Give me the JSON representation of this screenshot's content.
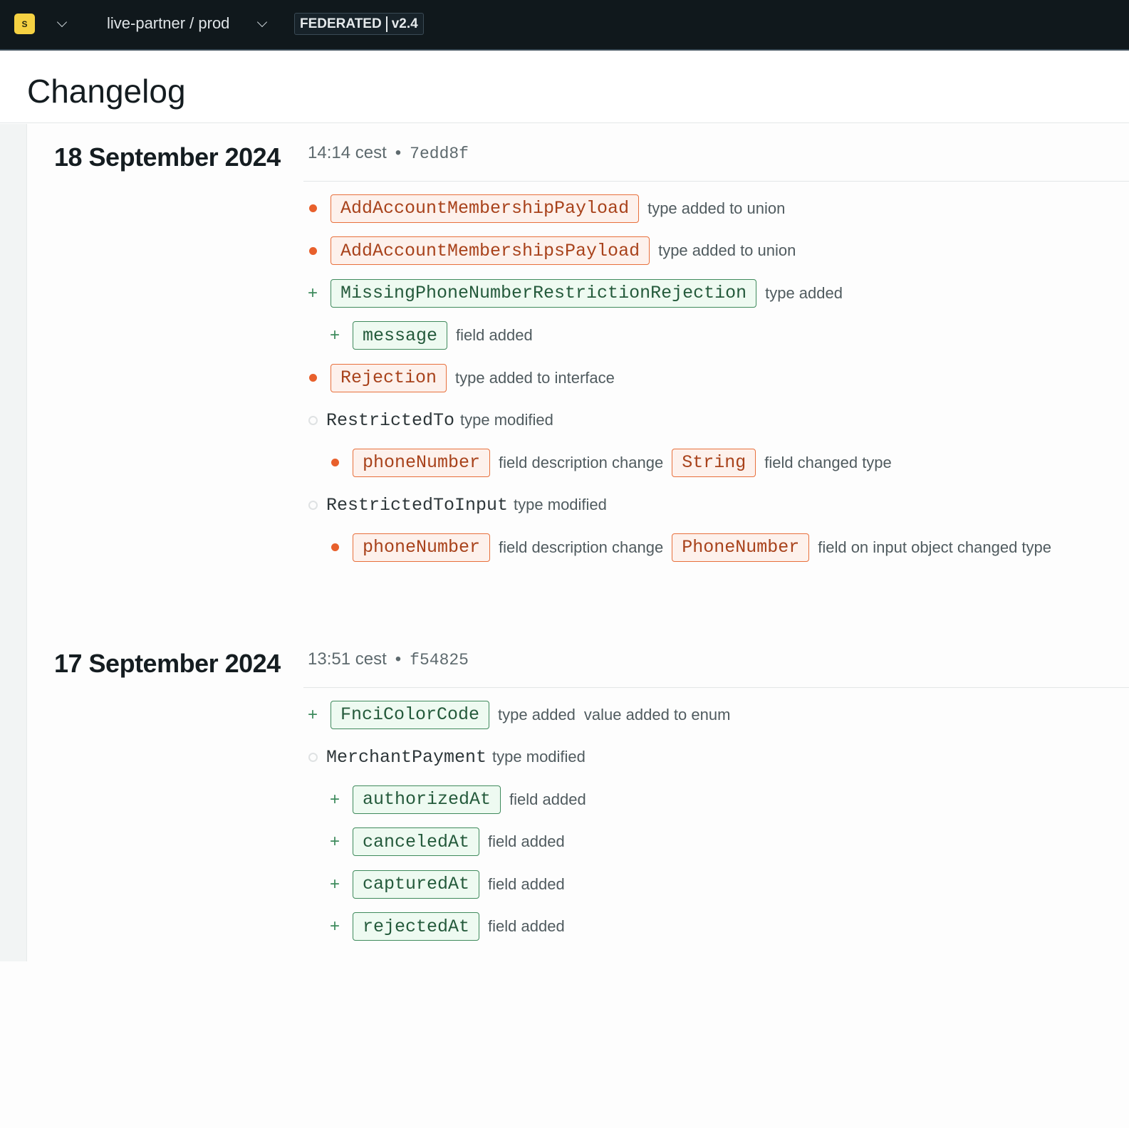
{
  "topbar": {
    "org_initial": "S",
    "graph": "live-partner / prod",
    "badge_mode": "FEDERATED",
    "badge_version": "v2.4"
  },
  "page": {
    "title": "Changelog"
  },
  "colors": {
    "removed": "#e8602c",
    "added": "#3d8a5c",
    "topbar": "#10181c",
    "logo": "#f5d142"
  },
  "entries": [
    {
      "date": "18 September 2024",
      "time": "14:14 cest",
      "hash": "7edd8f",
      "changes": [
        {
          "marker": "removed",
          "indent": 0,
          "parts": [
            {
              "kind": "pill",
              "text": "AddAccountMembershipPayload"
            },
            {
              "kind": "text",
              "text": "type added to union"
            }
          ]
        },
        {
          "marker": "removed",
          "indent": 0,
          "parts": [
            {
              "kind": "pill",
              "text": "AddAccountMembershipsPayload"
            },
            {
              "kind": "text",
              "text": "type added to union"
            }
          ]
        },
        {
          "marker": "added",
          "indent": 0,
          "parts": [
            {
              "kind": "pill",
              "text": "MissingPhoneNumberRestrictionRejection"
            },
            {
              "kind": "text",
              "text": "type added"
            }
          ]
        },
        {
          "marker": "added",
          "indent": 1,
          "parts": [
            {
              "kind": "pill",
              "text": "message"
            },
            {
              "kind": "text",
              "text": "field added"
            }
          ]
        },
        {
          "marker": "removed",
          "indent": 0,
          "parts": [
            {
              "kind": "pill",
              "text": "Rejection"
            },
            {
              "kind": "text",
              "text": "type added to interface"
            }
          ]
        },
        {
          "marker": "modified",
          "indent": 0,
          "parts": [
            {
              "kind": "name",
              "text": "RestrictedTo"
            },
            {
              "kind": "text",
              "text": "type modified"
            }
          ]
        },
        {
          "marker": "removed",
          "indent": 1,
          "parts": [
            {
              "kind": "pill",
              "text": "phoneNumber"
            },
            {
              "kind": "text",
              "text": "field description change"
            },
            {
              "kind": "pill",
              "text": "String"
            },
            {
              "kind": "text",
              "text": "field changed type"
            }
          ]
        },
        {
          "marker": "modified",
          "indent": 0,
          "parts": [
            {
              "kind": "name",
              "text": "RestrictedToInput"
            },
            {
              "kind": "text",
              "text": "type modified"
            }
          ]
        },
        {
          "marker": "removed",
          "indent": 1,
          "parts": [
            {
              "kind": "pill",
              "text": "phoneNumber"
            },
            {
              "kind": "text",
              "text": "field description change"
            },
            {
              "kind": "pill",
              "text": "PhoneNumber"
            },
            {
              "kind": "text",
              "text": "field on input object changed type"
            }
          ]
        }
      ]
    },
    {
      "date": "17 September 2024",
      "time": "13:51 cest",
      "hash": "f54825",
      "changes": [
        {
          "marker": "added",
          "indent": 0,
          "parts": [
            {
              "kind": "pill",
              "text": "FnciColorCode"
            },
            {
              "kind": "text",
              "text": "type added"
            },
            {
              "kind": "text",
              "text": "value added to enum"
            }
          ]
        },
        {
          "marker": "modified",
          "indent": 0,
          "parts": [
            {
              "kind": "name",
              "text": "MerchantPayment"
            },
            {
              "kind": "text",
              "text": "type modified"
            }
          ]
        },
        {
          "marker": "added",
          "indent": 1,
          "parts": [
            {
              "kind": "pill",
              "text": "authorizedAt"
            },
            {
              "kind": "text",
              "text": "field added"
            }
          ]
        },
        {
          "marker": "added",
          "indent": 1,
          "parts": [
            {
              "kind": "pill",
              "text": "canceledAt"
            },
            {
              "kind": "text",
              "text": "field added"
            }
          ]
        },
        {
          "marker": "added",
          "indent": 1,
          "parts": [
            {
              "kind": "pill",
              "text": "capturedAt"
            },
            {
              "kind": "text",
              "text": "field added"
            }
          ]
        },
        {
          "marker": "added",
          "indent": 1,
          "parts": [
            {
              "kind": "pill",
              "text": "rejectedAt"
            },
            {
              "kind": "text",
              "text": "field added"
            }
          ]
        }
      ]
    }
  ]
}
